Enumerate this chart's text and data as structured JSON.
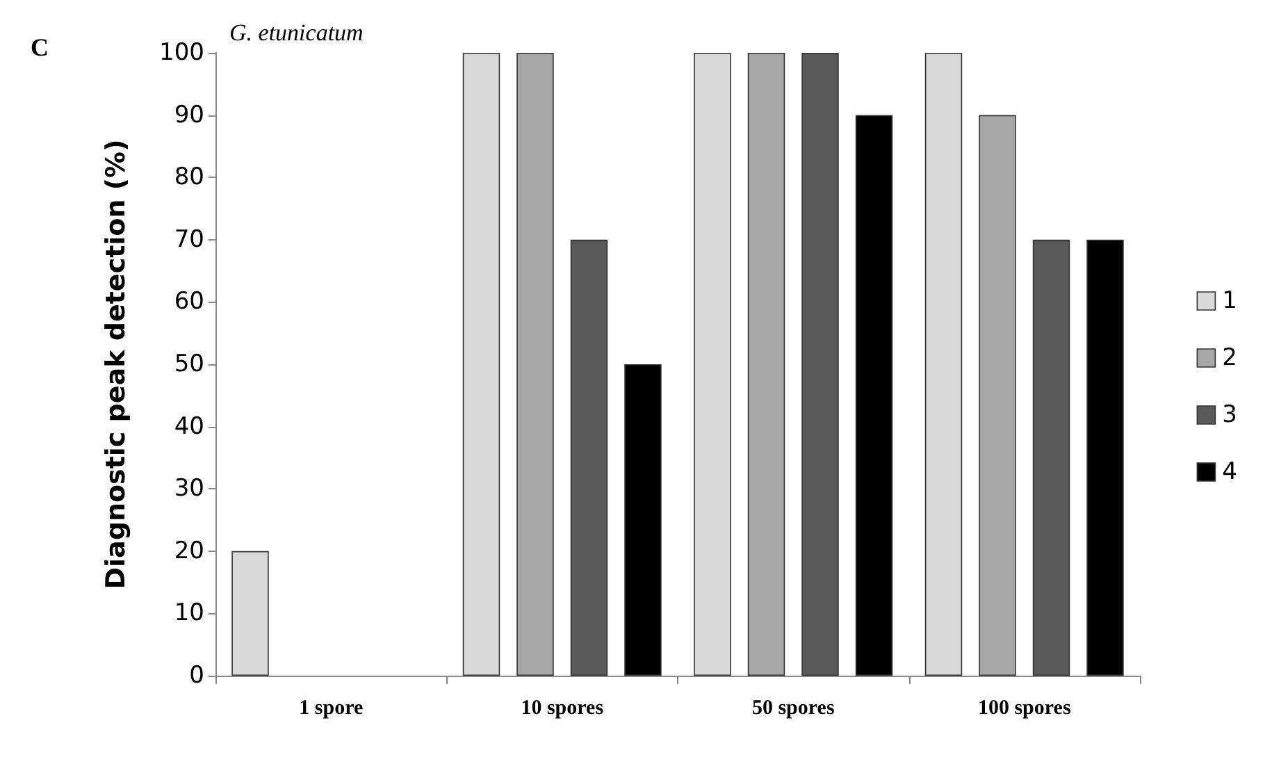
{
  "chart_data": {
    "type": "bar",
    "title": "G. etunicatum",
    "ylabel": "Diagnostic peak detection (%)",
    "annotations": [
      "C"
    ],
    "categories": [
      "1 spore",
      "10 spores",
      "50 spores",
      "100 spores"
    ],
    "series": [
      {
        "name": "1",
        "color": "#d9d9d9",
        "values": [
          20,
          100,
          100,
          100
        ]
      },
      {
        "name": "2",
        "color": "#a6a6a6",
        "values": [
          0,
          100,
          100,
          90
        ]
      },
      {
        "name": "3",
        "color": "#595959",
        "values": [
          0,
          70,
          100,
          70
        ]
      },
      {
        "name": "4",
        "color": "#000000",
        "values": [
          0,
          50,
          90,
          70
        ]
      }
    ],
    "ylim": [
      0,
      100
    ],
    "yticks": [
      0,
      10,
      20,
      30,
      40,
      50,
      60,
      70,
      80,
      90,
      100
    ],
    "grid": false,
    "legend": "right"
  }
}
